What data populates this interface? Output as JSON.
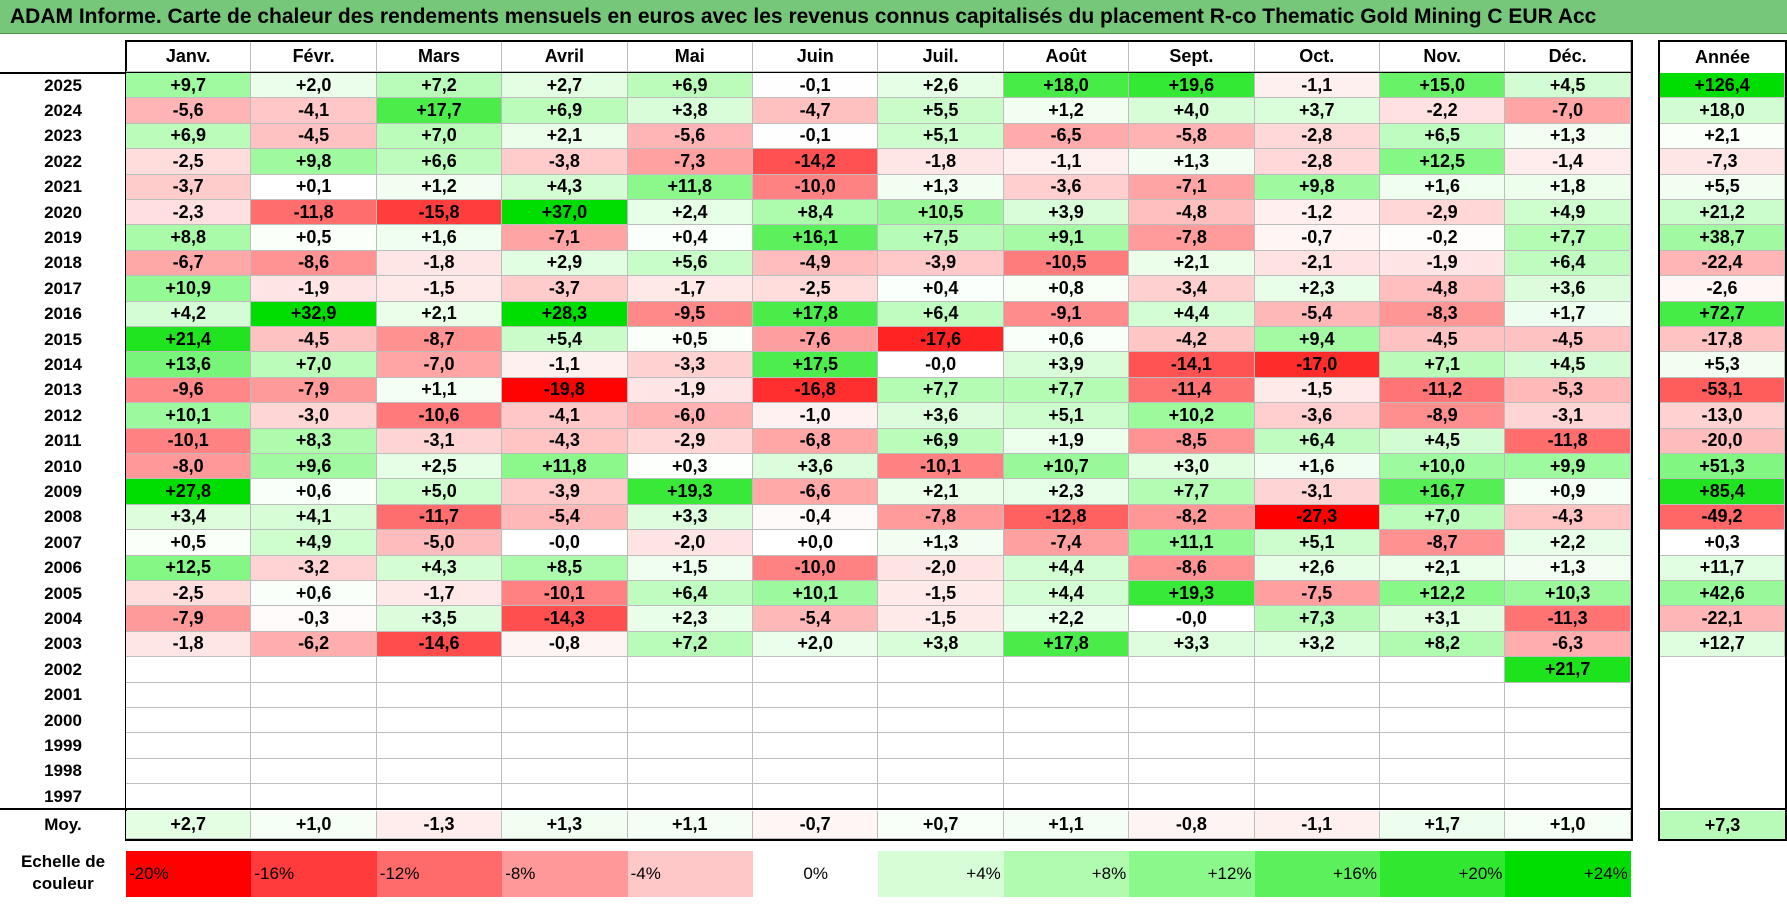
{
  "title": "ADAM Informe. Carte de chaleur des rendements mensuels en euros avec les revenus connus capitalisés du placement R-co Thematic Gold Mining C EUR Acc",
  "chart_data": {
    "type": "heatmap",
    "columns": [
      "Janv.",
      "Févr.",
      "Mars",
      "Avril",
      "Mai",
      "Juin",
      "Juil.",
      "Août",
      "Sept.",
      "Oct.",
      "Nov.",
      "Déc."
    ],
    "annual_header": "Année",
    "rows": [
      {
        "year": "2025",
        "values": [
          "+9,7",
          "+2,0",
          "+7,2",
          "+2,7",
          "+6,9",
          "-0,1",
          "+2,6",
          "+18,0",
          "+19,6",
          "-1,1",
          "+15,0",
          "+4,5"
        ],
        "annual": "+126,4"
      },
      {
        "year": "2024",
        "values": [
          "-5,6",
          "-4,1",
          "+17,7",
          "+6,9",
          "+3,8",
          "-4,7",
          "+5,5",
          "+1,2",
          "+4,0",
          "+3,7",
          "-2,2",
          "-7,0"
        ],
        "annual": "+18,0"
      },
      {
        "year": "2023",
        "values": [
          "+6,9",
          "-4,5",
          "+7,0",
          "+2,1",
          "-5,6",
          "-0,1",
          "+5,1",
          "-6,5",
          "-5,8",
          "-2,8",
          "+6,5",
          "+1,3"
        ],
        "annual": "+2,1"
      },
      {
        "year": "2022",
        "values": [
          "-2,5",
          "+9,8",
          "+6,6",
          "-3,8",
          "-7,3",
          "-14,2",
          "-1,8",
          "-1,1",
          "+1,3",
          "-2,8",
          "+12,5",
          "-1,4"
        ],
        "annual": "-7,3"
      },
      {
        "year": "2021",
        "values": [
          "-3,7",
          "+0,1",
          "+1,2",
          "+4,3",
          "+11,8",
          "-10,0",
          "+1,3",
          "-3,6",
          "-7,1",
          "+9,8",
          "+1,6",
          "+1,8"
        ],
        "annual": "+5,5"
      },
      {
        "year": "2020",
        "values": [
          "-2,3",
          "-11,8",
          "-15,8",
          "+37,0",
          "+2,4",
          "+8,4",
          "+10,5",
          "+3,9",
          "-4,8",
          "-1,2",
          "-2,9",
          "+4,9"
        ],
        "annual": "+21,2"
      },
      {
        "year": "2019",
        "values": [
          "+8,8",
          "+0,5",
          "+1,6",
          "-7,1",
          "+0,4",
          "+16,1",
          "+7,5",
          "+9,1",
          "-7,8",
          "-0,7",
          "-0,2",
          "+7,7"
        ],
        "annual": "+38,7"
      },
      {
        "year": "2018",
        "values": [
          "-6,7",
          "-8,6",
          "-1,8",
          "+2,9",
          "+5,6",
          "-4,9",
          "-3,9",
          "-10,5",
          "+2,1",
          "-2,1",
          "-1,9",
          "+6,4"
        ],
        "annual": "-22,4"
      },
      {
        "year": "2017",
        "values": [
          "+10,9",
          "-1,9",
          "-1,5",
          "-3,7",
          "-1,7",
          "-2,5",
          "+0,4",
          "+0,8",
          "-3,4",
          "+2,3",
          "-4,8",
          "+3,6"
        ],
        "annual": "-2,6"
      },
      {
        "year": "2016",
        "values": [
          "+4,2",
          "+32,9",
          "+2,1",
          "+28,3",
          "-9,5",
          "+17,8",
          "+6,4",
          "-9,1",
          "+4,4",
          "-5,4",
          "-8,3",
          "+1,7"
        ],
        "annual": "+72,7"
      },
      {
        "year": "2015",
        "values": [
          "+21,4",
          "-4,5",
          "-8,7",
          "+5,4",
          "+0,5",
          "-7,6",
          "-17,6",
          "+0,6",
          "-4,2",
          "+9,4",
          "-4,5",
          "-4,5"
        ],
        "annual": "-17,8"
      },
      {
        "year": "2014",
        "values": [
          "+13,6",
          "+7,0",
          "-7,0",
          "-1,1",
          "-3,3",
          "+17,5",
          "-0,0",
          "+3,9",
          "-14,1",
          "-17,0",
          "+7,1",
          "+4,5"
        ],
        "annual": "+5,3"
      },
      {
        "year": "2013",
        "values": [
          "-9,6",
          "-7,9",
          "+1,1",
          "-19,8",
          "-1,9",
          "-16,8",
          "+7,7",
          "+7,7",
          "-11,4",
          "-1,5",
          "-11,2",
          "-5,3"
        ],
        "annual": "-53,1"
      },
      {
        "year": "2012",
        "values": [
          "+10,1",
          "-3,0",
          "-10,6",
          "-4,1",
          "-6,0",
          "-1,0",
          "+3,6",
          "+5,1",
          "+10,2",
          "-3,6",
          "-8,9",
          "-3,1"
        ],
        "annual": "-13,0"
      },
      {
        "year": "2011",
        "values": [
          "-10,1",
          "+8,3",
          "-3,1",
          "-4,3",
          "-2,9",
          "-6,8",
          "+6,9",
          "+1,9",
          "-8,5",
          "+6,4",
          "+4,5",
          "-11,8"
        ],
        "annual": "-20,0"
      },
      {
        "year": "2010",
        "values": [
          "-8,0",
          "+9,6",
          "+2,5",
          "+11,8",
          "+0,3",
          "+3,6",
          "-10,1",
          "+10,7",
          "+3,0",
          "+1,6",
          "+10,0",
          "+9,9"
        ],
        "annual": "+51,3"
      },
      {
        "year": "2009",
        "values": [
          "+27,8",
          "+0,6",
          "+5,0",
          "-3,9",
          "+19,3",
          "-6,6",
          "+2,1",
          "+2,3",
          "+7,7",
          "-3,1",
          "+16,7",
          "+0,9"
        ],
        "annual": "+85,4"
      },
      {
        "year": "2008",
        "values": [
          "+3,4",
          "+4,1",
          "-11,7",
          "-5,4",
          "+3,3",
          "-0,4",
          "-7,8",
          "-12,8",
          "-8,2",
          "-27,3",
          "+7,0",
          "-4,3"
        ],
        "annual": "-49,2"
      },
      {
        "year": "2007",
        "values": [
          "+0,5",
          "+4,9",
          "-5,0",
          "-0,0",
          "-2,0",
          "+0,0",
          "+1,3",
          "-7,4",
          "+11,1",
          "+5,1",
          "-8,7",
          "+2,2"
        ],
        "annual": "+0,3"
      },
      {
        "year": "2006",
        "values": [
          "+12,5",
          "-3,2",
          "+4,3",
          "+8,5",
          "+1,5",
          "-10,0",
          "-2,0",
          "+4,4",
          "-8,6",
          "+2,6",
          "+2,1",
          "+1,3"
        ],
        "annual": "+11,7"
      },
      {
        "year": "2005",
        "values": [
          "-2,5",
          "+0,6",
          "-1,7",
          "-10,1",
          "+6,4",
          "+10,1",
          "-1,5",
          "+4,4",
          "+19,3",
          "-7,5",
          "+12,2",
          "+10,3"
        ],
        "annual": "+42,6"
      },
      {
        "year": "2004",
        "values": [
          "-7,9",
          "-0,3",
          "+3,5",
          "-14,3",
          "+2,3",
          "-5,4",
          "-1,5",
          "+2,2",
          "-0,0",
          "+7,3",
          "+3,1",
          "-11,3"
        ],
        "annual": "-22,1"
      },
      {
        "year": "2003",
        "values": [
          "-1,8",
          "-6,2",
          "-14,6",
          "-0,8",
          "+7,2",
          "+2,0",
          "+3,8",
          "+17,8",
          "+3,3",
          "+3,2",
          "+8,2",
          "-6,3"
        ],
        "annual": "+12,7"
      },
      {
        "year": "2002",
        "values": [
          "",
          "",
          "",
          "",
          "",
          "",
          "",
          "",
          "",
          "",
          "",
          "+21,7"
        ],
        "annual": ""
      },
      {
        "year": "2001",
        "values": [
          "",
          "",
          "",
          "",
          "",
          "",
          "",
          "",
          "",
          "",
          "",
          ""
        ],
        "annual": ""
      },
      {
        "year": "2000",
        "values": [
          "",
          "",
          "",
          "",
          "",
          "",
          "",
          "",
          "",
          "",
          "",
          ""
        ],
        "annual": ""
      },
      {
        "year": "1999",
        "values": [
          "",
          "",
          "",
          "",
          "",
          "",
          "",
          "",
          "",
          "",
          "",
          ""
        ],
        "annual": ""
      },
      {
        "year": "1998",
        "values": [
          "",
          "",
          "",
          "",
          "",
          "",
          "",
          "",
          "",
          "",
          "",
          ""
        ],
        "annual": ""
      },
      {
        "year": "1997",
        "values": [
          "",
          "",
          "",
          "",
          "",
          "",
          "",
          "",
          "",
          "",
          "",
          ""
        ],
        "annual": ""
      }
    ],
    "average": {
      "label": "Moy.",
      "values": [
        "+2,7",
        "+1,0",
        "-1,3",
        "+1,3",
        "+1,1",
        "-0,7",
        "+0,7",
        "+1,1",
        "-0,8",
        "-1,1",
        "+1,7",
        "+1,0"
      ],
      "annual": "+7,3"
    },
    "color_scale": {
      "title_line1": "Echelle de",
      "title_line2": "couleur",
      "stops": [
        {
          "label": "-20%",
          "value": -20,
          "color": "#ff0000"
        },
        {
          "label": "-16%",
          "value": -16,
          "color": "#ff3b3b"
        },
        {
          "label": "-12%",
          "value": -12,
          "color": "#ff6b6b"
        },
        {
          "label": "-8%",
          "value": -8,
          "color": "#ff9999"
        },
        {
          "label": "-4%",
          "value": -4,
          "color": "#ffc8c8"
        },
        {
          "label": "0%",
          "value": 0,
          "color": "#ffffff"
        },
        {
          "label": "+4%",
          "value": 4,
          "color": "#d7fdd7"
        },
        {
          "label": "+8%",
          "value": 8,
          "color": "#b1fbb1"
        },
        {
          "label": "+12%",
          "value": 12,
          "color": "#8af88a"
        },
        {
          "label": "+16%",
          "value": 16,
          "color": "#5df05d"
        },
        {
          "label": "+20%",
          "value": 20,
          "color": "#30e830"
        },
        {
          "label": "+24%",
          "value": 24,
          "color": "#00dd00"
        }
      ]
    }
  }
}
